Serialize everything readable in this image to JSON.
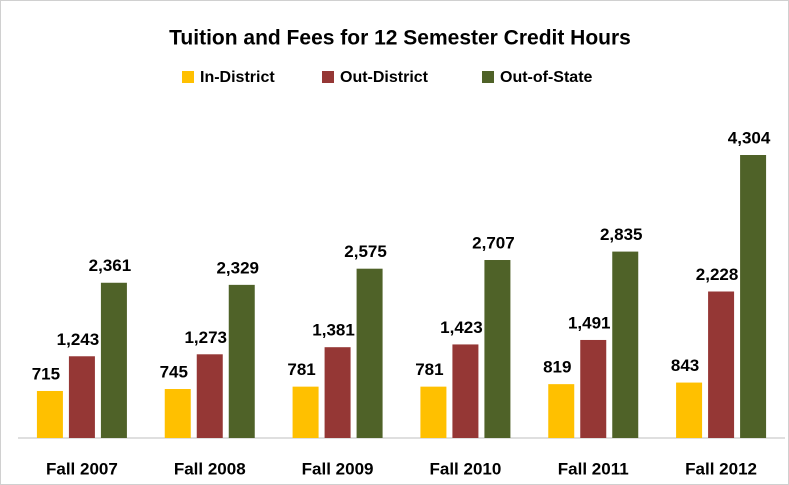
{
  "chart_data": {
    "type": "bar",
    "title": "Tuition and Fees for 12 Semester Credit Hours",
    "categories": [
      "Fall 2007",
      "Fall 2008",
      "Fall 2009",
      "Fall 2010",
      "Fall 2011",
      "Fall 2012"
    ],
    "series": [
      {
        "name": "In-District",
        "color": "#FFC000",
        "values": [
          715,
          745,
          781,
          781,
          819,
          843
        ],
        "value_labels": [
          "715",
          "745",
          "781",
          "781",
          "819",
          "843"
        ]
      },
      {
        "name": "Out-District",
        "color": "#953735",
        "values": [
          1243,
          1273,
          1381,
          1423,
          1491,
          2228
        ],
        "value_labels": [
          "1,243",
          "1,273",
          "1,381",
          "1,423",
          "1,491",
          "2,228"
        ]
      },
      {
        "name": "Out-of-State",
        "color": "#4F6228",
        "values": [
          2361,
          2329,
          2575,
          2707,
          2835,
          4304
        ],
        "value_labels": [
          "2,361",
          "2,329",
          "2,575",
          "2,707",
          "2,835",
          "4,304"
        ]
      }
    ],
    "legend": "top"
  }
}
